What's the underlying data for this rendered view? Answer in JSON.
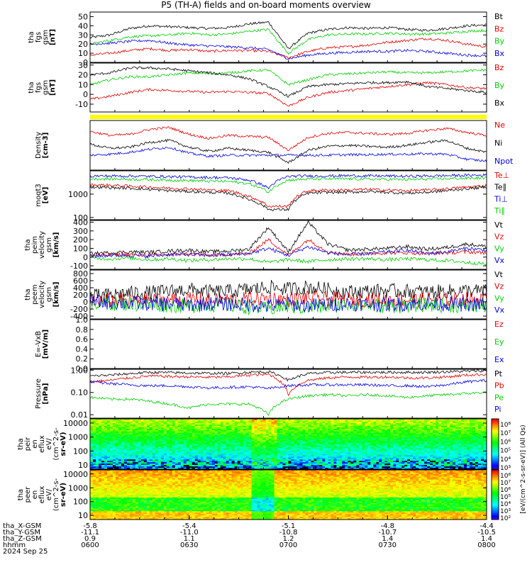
{
  "title": "P5 (TH-A) fields and on-board moments overview",
  "colors": {
    "black": "#000000",
    "red": "#e00000",
    "green": "#00d000",
    "blue": "#0000e0",
    "yellow": "#ffff00"
  },
  "date_label": "2024 Sep 25",
  "xaxis": {
    "row_labels": [
      "tha_X-GSM",
      "tha_Y-GSM",
      "tha_Z-GSM",
      "hhmm"
    ],
    "columns": [
      [
        "-5.8",
        "-11.1",
        "0.9",
        "0600"
      ],
      [
        "-5.4",
        "-11.0",
        "1.1",
        "0630"
      ],
      [
        "-5.1",
        "-10.8",
        "1.2",
        "0700"
      ],
      [
        "-4.8",
        "-10.7",
        "1.4",
        "0730"
      ],
      [
        "-4.4",
        "-10.5",
        "1.4",
        "0800"
      ]
    ],
    "hhmm_values": [
      600,
      630,
      700,
      730,
      800
    ]
  },
  "colorbar_label": "[eV/(cm^2-s-sr-eV)] (All Qs)",
  "chart_data": [
    {
      "type": "line",
      "ylabel_lines": [
        "tha",
        "fgs",
        "gsm",
        "[nT]"
      ],
      "ylim": [
        0,
        55
      ],
      "ticks": [
        "0",
        "10",
        "20",
        "30",
        "40",
        "50"
      ],
      "legend": [
        "Bt",
        "Bz",
        "By",
        "Bx"
      ],
      "legend_colors": [
        "#000000",
        "#e00000",
        "#00d000",
        "#0000e0"
      ],
      "series": [
        {
          "name": "Bt",
          "values": [
            27,
            30,
            37,
            40,
            39,
            38,
            37,
            38,
            42,
            44,
            15,
            32,
            36,
            38,
            37,
            38,
            36,
            35,
            37,
            40,
            41
          ]
        },
        {
          "name": "Bz",
          "values": [
            8,
            10,
            13,
            15,
            13,
            14,
            12,
            13,
            13,
            12,
            5,
            12,
            16,
            17,
            19,
            22,
            24,
            26,
            24,
            20,
            17
          ]
        },
        {
          "name": "By",
          "values": [
            20,
            24,
            28,
            29,
            30,
            32,
            30,
            31,
            34,
            36,
            10,
            25,
            30,
            31,
            31,
            32,
            31,
            31,
            32,
            34,
            35
          ]
        },
        {
          "name": "Bx",
          "values": [
            20,
            21,
            23,
            24,
            21,
            19,
            18,
            17,
            16,
            14,
            4,
            8,
            10,
            11,
            12,
            12,
            13,
            12,
            10,
            8,
            7
          ]
        }
      ]
    },
    {
      "type": "line",
      "ylabel_lines": [
        "tha",
        "fgs",
        "gsm",
        "[nT]"
      ],
      "ylim": [
        -18,
        32
      ],
      "ticks": [
        "-10",
        "0",
        "10",
        "20",
        "30"
      ],
      "legend": [
        "Bz",
        "By",
        "Bx"
      ],
      "legend_colors": [
        "#e00000",
        "#00d000",
        "#000000"
      ],
      "series": [
        {
          "name": "Bz",
          "values": [
            -5,
            -2,
            2,
            5,
            4,
            3,
            2,
            3,
            2,
            1,
            -12,
            -3,
            2,
            4,
            6,
            8,
            10,
            12,
            10,
            7,
            6
          ]
        },
        {
          "name": "By",
          "values": [
            10,
            15,
            18,
            18,
            20,
            22,
            21,
            22,
            24,
            25,
            10,
            15,
            20,
            21,
            22,
            23,
            22,
            22,
            23,
            24,
            25
          ]
        },
        {
          "name": "Bx",
          "values": [
            20,
            22,
            27,
            27,
            26,
            24,
            22,
            20,
            16,
            8,
            -2,
            8,
            10,
            11,
            12,
            12,
            13,
            8,
            6,
            4,
            2
          ]
        }
      ]
    },
    {
      "type": "line",
      "ylabel_lines": [
        "Density",
        "[cm-3]"
      ],
      "ylim": [
        0,
        1
      ],
      "ticks": [],
      "legend": [
        "Ne",
        "Ni",
        "Npot"
      ],
      "legend_colors": [
        "#e00000",
        "#000000",
        "#0000e0"
      ],
      "series": [
        {
          "name": "Ne",
          "values": [
            0.78,
            0.7,
            0.72,
            0.82,
            0.86,
            0.72,
            0.64,
            0.7,
            0.68,
            0.66,
            0.4,
            0.66,
            0.74,
            0.76,
            0.74,
            0.72,
            0.74,
            0.8,
            0.84,
            0.76,
            0.7
          ]
        },
        {
          "name": "Ni",
          "values": [
            0.52,
            0.44,
            0.46,
            0.56,
            0.6,
            0.46,
            0.38,
            0.44,
            0.4,
            0.36,
            0.15,
            0.4,
            0.48,
            0.5,
            0.48,
            0.46,
            0.5,
            0.56,
            0.6,
            0.44,
            0.36
          ]
        },
        {
          "name": "Npot",
          "values": [
            0.3,
            0.32,
            0.36,
            0.42,
            0.46,
            0.34,
            0.28,
            0.3,
            0.3,
            0.3,
            0.3,
            0.3,
            0.3,
            0.31,
            0.31,
            0.32,
            0.32,
            0.33,
            0.32,
            0.22,
            0.18
          ]
        }
      ]
    },
    {
      "type": "line",
      "ylabel_lines": [
        "moqt3",
        "[eV]"
      ],
      "ylim": [
        80,
        10000
      ],
      "log": true,
      "ticks": [
        "100",
        "1000"
      ],
      "legend": [
        "Te⊥",
        "Te∥",
        "Ti⊥",
        "Ti∥"
      ],
      "legend_colors": [
        "#e00000",
        "#000000",
        "#0000e0",
        "#00d000"
      ],
      "series": [
        {
          "name": "Te⊥",
          "values": [
            2500,
            2400,
            2200,
            2000,
            1800,
            1700,
            1500,
            1400,
            800,
            300,
            300,
            1400,
            1500,
            1500,
            1600,
            1500,
            1400,
            1500,
            1700,
            2000,
            2300
          ]
        },
        {
          "name": "Te∥",
          "values": [
            2000,
            1900,
            1800,
            1600,
            1400,
            1300,
            1200,
            1100,
            600,
            220,
            220,
            1100,
            1200,
            1200,
            1300,
            1200,
            1100,
            1200,
            1400,
            1700,
            2000
          ]
        },
        {
          "name": "Ti⊥",
          "values": [
            6000,
            6000,
            6000,
            5800,
            5600,
            5400,
            5200,
            5000,
            4000,
            1800,
            5800,
            6000,
            6000,
            6200,
            6000,
            6000,
            5800,
            6000,
            6200,
            6400,
            6500
          ]
        },
        {
          "name": "Ti∥",
          "values": [
            4500,
            4500,
            4400,
            4200,
            4000,
            3800,
            3600,
            3500,
            2800,
            1200,
            4000,
            4400,
            4500,
            4500,
            4400,
            4300,
            4200,
            4400,
            4600,
            4800,
            5000
          ]
        }
      ]
    },
    {
      "type": "line",
      "ylabel_lines": [
        "tha",
        "peim",
        "velocity",
        "gsm",
        "[km/s]"
      ],
      "ylim": [
        -140,
        420
      ],
      "ticks": [
        "-100",
        "0",
        "100",
        "200",
        "300",
        "400"
      ],
      "legend": [
        "Vt",
        "Vz",
        "Vy",
        "Vx"
      ],
      "legend_colors": [
        "#000000",
        "#e00000",
        "#00d000",
        "#0000e0"
      ],
      "series": [
        {
          "name": "Vt",
          "values": [
            40,
            50,
            60,
            55,
            70,
            80,
            60,
            70,
            90,
            340,
            60,
            400,
            150,
            80,
            90,
            100,
            120,
            90,
            110,
            150,
            120
          ]
        },
        {
          "name": "Vz",
          "values": [
            20,
            25,
            30,
            20,
            30,
            40,
            20,
            30,
            40,
            200,
            20,
            200,
            60,
            30,
            40,
            50,
            50,
            40,
            50,
            60,
            50
          ]
        },
        {
          "name": "Vy",
          "values": [
            -10,
            -20,
            -10,
            -30,
            -20,
            -40,
            -30,
            -20,
            -20,
            -60,
            -30,
            -50,
            -30,
            -20,
            -20,
            -30,
            -20,
            -30,
            -40,
            -60,
            -80
          ]
        },
        {
          "name": "Vx",
          "values": [
            10,
            20,
            20,
            10,
            30,
            30,
            20,
            30,
            40,
            100,
            20,
            120,
            50,
            30,
            40,
            60,
            80,
            40,
            60,
            100,
            80
          ]
        }
      ]
    },
    {
      "type": "line",
      "ylabel_lines": [
        "tha",
        "peem",
        "velocity",
        "gsm",
        "[km/s]"
      ],
      "ylim": [
        -480,
        900
      ],
      "ticks": [
        "-400",
        "-200",
        "0",
        "200",
        "400",
        "600",
        "800"
      ],
      "legend": [
        "Vt",
        "Vz",
        "Vy",
        "Vx"
      ],
      "legend_colors": [
        "#000000",
        "#e00000",
        "#00d000",
        "#0000e0"
      ],
      "series": [
        {
          "name": "Vt",
          "values": [
            150,
            200,
            250,
            260,
            300,
            350,
            280,
            300,
            350,
            420,
            360,
            420,
            350,
            280,
            300,
            320,
            300,
            280,
            300,
            320,
            300
          ]
        },
        {
          "name": "Vz",
          "values": [
            20,
            40,
            30,
            50,
            60,
            70,
            40,
            60,
            80,
            100,
            60,
            120,
            80,
            50,
            60,
            70,
            60,
            50,
            60,
            80,
            60
          ]
        },
        {
          "name": "Vy",
          "values": [
            -20,
            -40,
            -60,
            -80,
            -100,
            -120,
            -80,
            -100,
            -150,
            -200,
            -120,
            -180,
            -120,
            -80,
            -100,
            -120,
            -100,
            -80,
            -100,
            -120,
            -100
          ]
        },
        {
          "name": "Vx",
          "values": [
            0,
            -20,
            -40,
            -50,
            -60,
            -80,
            -50,
            -60,
            -80,
            -120,
            -60,
            -100,
            -70,
            -50,
            -60,
            -80,
            -60,
            -50,
            -60,
            -80,
            -60
          ]
        }
      ]
    },
    {
      "type": "line",
      "ylabel_lines": [
        "E=-VxB",
        "[mV/m]"
      ],
      "ylim": [
        0,
        1
      ],
      "ticks": [
        "0.0",
        "0.2",
        "0.4",
        "0.6",
        "0.8",
        "1.0"
      ],
      "legend": [
        "Ez",
        "Ey",
        "Ex"
      ],
      "legend_colors": [
        "#e00000",
        "#00d000",
        "#0000e0"
      ],
      "series": []
    },
    {
      "type": "line",
      "ylabel_lines": [
        "Pressure",
        "[nPa]"
      ],
      "ylim": [
        0.007,
        1.1
      ],
      "log": true,
      "ticks": [
        "0.01",
        "0.10",
        "1.00"
      ],
      "legend": [
        "Pt",
        "Pb",
        "Pe",
        "Pi"
      ],
      "legend_colors": [
        "#000000",
        "#e00000",
        "#00d000",
        "#0000e0"
      ],
      "series": [
        {
          "name": "Pt",
          "values": [
            0.55,
            0.6,
            0.7,
            0.8,
            0.78,
            0.75,
            0.72,
            0.72,
            0.8,
            0.85,
            0.35,
            0.7,
            0.78,
            0.8,
            0.8,
            0.8,
            0.8,
            0.8,
            0.85,
            0.9,
            0.95
          ]
        },
        {
          "name": "Pb",
          "values": [
            0.3,
            0.35,
            0.45,
            0.55,
            0.52,
            0.5,
            0.48,
            0.5,
            0.6,
            0.65,
            0.08,
            0.35,
            0.45,
            0.5,
            0.48,
            0.5,
            0.45,
            0.45,
            0.5,
            0.6,
            0.65
          ]
        },
        {
          "name": "Pe",
          "values": [
            0.06,
            0.05,
            0.05,
            0.04,
            0.03,
            0.02,
            0.03,
            0.03,
            0.03,
            0.01,
            0.05,
            0.07,
            0.08,
            0.07,
            0.08,
            0.07,
            0.06,
            0.07,
            0.08,
            0.09,
            0.1
          ]
        },
        {
          "name": "Pi",
          "values": [
            0.3,
            0.25,
            0.22,
            0.2,
            0.2,
            0.18,
            0.16,
            0.17,
            0.18,
            0.15,
            0.2,
            0.22,
            0.22,
            0.22,
            0.22,
            0.2,
            0.2,
            0.18,
            0.22,
            0.3,
            0.35
          ]
        }
      ]
    },
    {
      "type": "heatmap",
      "ylabel_lines": [
        "tha",
        "peir",
        "en",
        "eflux",
        "eV/",
        "(cm^2-s-",
        "sr-eV)"
      ],
      "ylim": [
        5,
        20000
      ],
      "log": true,
      "ticks": [
        "10",
        "100",
        "1000",
        "10000"
      ]
    },
    {
      "type": "heatmap",
      "ylabel_lines": [
        "tha",
        "peer",
        "en",
        "eflux",
        "eV/",
        "(cm^2-s-",
        "sr-eV)"
      ],
      "ylim": [
        5,
        20000
      ],
      "log": true,
      "ticks": [
        "10",
        "100",
        "1000",
        "10000"
      ]
    }
  ],
  "colorbar1_ticks": [
    "10⁸",
    "10⁷",
    "10⁶",
    "10⁵",
    "10⁴",
    "10³"
  ],
  "colorbar2_ticks": [
    "10⁸",
    "10⁷",
    "10⁶",
    "10⁵",
    "10⁴",
    "10³",
    "10²"
  ]
}
